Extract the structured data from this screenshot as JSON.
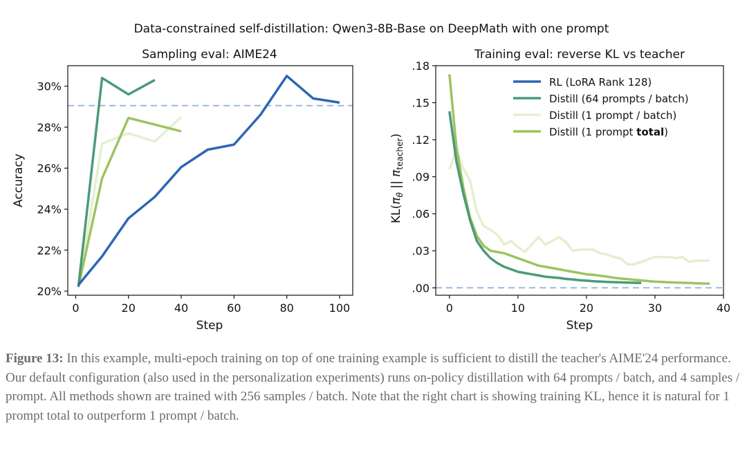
{
  "suptitle": "Data-constrained self-distillation: Qwen3-8B-Base on DeepMath with one prompt",
  "caption": {
    "label": "Figure 13:",
    "text": " In this example, multi-epoch training on top of one training example is sufficient to distill the teacher's AIME'24 performance. Our default configuration (also used in the personalization experiments) runs on-policy distillation with 64 prompts / batch, and 4 samples / prompt. All methods shown are trained with 256 samples / batch. Note that the right chart is showing training KL, hence it is natural for 1 prompt total to outperform 1 prompt / batch."
  },
  "colors": {
    "rl": "#2f65b5",
    "distill64": "#4c9a78",
    "distill1batch": "#e5efcf",
    "distill1total": "#9cc45e",
    "reference": "#9ab7e4"
  },
  "chart_data": [
    {
      "type": "line",
      "title": "Sampling eval: AIME24",
      "xlabel": "Step",
      "ylabel": "Accuracy",
      "xlim": [
        -3,
        105
      ],
      "ylim": [
        19.8,
        31.0
      ],
      "xticks": [
        0,
        20,
        40,
        60,
        80,
        100
      ],
      "xtick_labels": [
        "0",
        "20",
        "40",
        "60",
        "80",
        "100"
      ],
      "yticks": [
        20,
        22,
        24,
        26,
        28,
        30
      ],
      "ytick_labels": [
        "20%",
        "22%",
        "24%",
        "26%",
        "28%",
        "30%"
      ],
      "reference_line": 29.05,
      "series": [
        {
          "key": "distill1batch",
          "x": [
            1,
            10,
            20,
            30,
            40
          ],
          "y": [
            20.2,
            27.2,
            27.7,
            27.3,
            28.5
          ]
        },
        {
          "key": "distill1total",
          "x": [
            1,
            10,
            20,
            40
          ],
          "y": [
            20.2,
            25.5,
            28.45,
            27.8
          ]
        },
        {
          "key": "distill64",
          "x": [
            1,
            10,
            20,
            30
          ],
          "y": [
            20.2,
            30.4,
            29.6,
            30.3
          ]
        },
        {
          "key": "rl",
          "x": [
            1,
            10,
            20,
            30,
            40,
            50,
            60,
            70,
            80,
            90,
            100
          ],
          "y": [
            20.3,
            21.7,
            23.55,
            24.6,
            26.05,
            26.9,
            27.15,
            28.6,
            30.5,
            29.4,
            29.2
          ]
        }
      ]
    },
    {
      "type": "line",
      "title": "Training eval: reverse KL vs teacher",
      "xlabel": "Step",
      "ylabel_prefix": "KL(",
      "ylabel_pi": "π",
      "ylabel_theta": "θ",
      "ylabel_mid": " || ",
      "ylabel_teacher": "teacher",
      "ylabel_suffix": ")",
      "xlim": [
        -2,
        40
      ],
      "ylim": [
        -0.006,
        0.18
      ],
      "xticks": [
        0,
        10,
        20,
        30,
        40
      ],
      "xtick_labels": [
        "0",
        "10",
        "20",
        "30",
        "40"
      ],
      "yticks": [
        0,
        0.03,
        0.06,
        0.09,
        0.12,
        0.15,
        0.18
      ],
      "ytick_labels": [
        ".00",
        ".03",
        ".06",
        ".09",
        ".12",
        ".15",
        ".18"
      ],
      "reference_line": 0,
      "legend": {
        "placement": "upper-right",
        "items": [
          {
            "key": "rl",
            "label": "RL (LoRA Rank 128)"
          },
          {
            "key": "distill64",
            "label": "Distill (64 prompts / batch)"
          },
          {
            "key": "distill1batch",
            "label": "Distill (1 prompt / batch)"
          },
          {
            "key": "distill1total",
            "label_before": "Distill (1 prompt ",
            "label_bold": "total",
            "label_after": ")"
          }
        ]
      },
      "series": [
        {
          "key": "distill1batch",
          "x": [
            0,
            1,
            2,
            3,
            4,
            5,
            6,
            7,
            8,
            9,
            10,
            11,
            12,
            13,
            14,
            15,
            16,
            17,
            18,
            19,
            20,
            21,
            22,
            23,
            24,
            25,
            26,
            27,
            28,
            29,
            30,
            31,
            32,
            33,
            34,
            35,
            36,
            37,
            38
          ],
          "y": [
            0.096,
            0.112,
            0.097,
            0.087,
            0.062,
            0.05,
            0.047,
            0.043,
            0.035,
            0.038,
            0.033,
            0.029,
            0.035,
            0.041,
            0.035,
            0.038,
            0.041,
            0.037,
            0.03,
            0.031,
            0.031,
            0.031,
            0.028,
            0.027,
            0.025,
            0.024,
            0.019,
            0.019,
            0.021,
            0.023,
            0.025,
            0.025,
            0.025,
            0.024,
            0.025,
            0.021,
            0.022,
            0.022,
            0.022
          ]
        },
        {
          "key": "distill1total",
          "x": [
            0,
            1,
            2,
            3,
            4,
            5,
            6,
            7,
            8,
            9,
            10,
            11,
            12,
            13,
            14,
            15,
            16,
            17,
            18,
            19,
            20,
            21,
            22,
            23,
            24,
            25,
            26,
            27,
            28,
            29,
            30,
            31,
            32,
            33,
            34,
            35,
            36,
            37,
            38
          ],
          "y": [
            0.173,
            0.115,
            0.082,
            0.057,
            0.042,
            0.034,
            0.03,
            0.029,
            0.028,
            0.026,
            0.024,
            0.022,
            0.02,
            0.018,
            0.017,
            0.016,
            0.015,
            0.014,
            0.013,
            0.012,
            0.011,
            0.0105,
            0.0098,
            0.009,
            0.0082,
            0.0075,
            0.007,
            0.0065,
            0.006,
            0.0055,
            0.005,
            0.0048,
            0.0045,
            0.0043,
            0.0041,
            0.0039,
            0.0037,
            0.0035,
            0.0034
          ]
        },
        {
          "key": "distill64",
          "x": [
            0,
            1,
            2,
            3,
            4,
            5,
            6,
            7,
            8,
            9,
            10,
            11,
            12,
            13,
            14,
            15,
            16,
            17,
            18,
            19,
            20,
            21,
            22,
            23,
            24,
            25,
            26,
            27,
            28
          ],
          "y": [
            0.143,
            0.103,
            0.077,
            0.055,
            0.038,
            0.03,
            0.024,
            0.02,
            0.017,
            0.015,
            0.013,
            0.012,
            0.011,
            0.01,
            0.009,
            0.0085,
            0.008,
            0.0072,
            0.0068,
            0.0062,
            0.0058,
            0.0054,
            0.0051,
            0.0048,
            0.0046,
            0.0044,
            0.0042,
            0.0041,
            0.004
          ]
        }
      ]
    }
  ]
}
